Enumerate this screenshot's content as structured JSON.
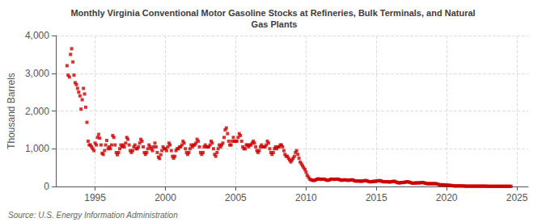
{
  "chart_data": {
    "type": "scatter",
    "title": "Monthly Virginia Conventional Motor Gasoline Stocks at Refineries, Bulk Terminals, and Natural\n Gas Plants",
    "ylabel": "Thousand Barrels",
    "source": "Source: U.S. Energy Information Administration",
    "color": "#CC0000",
    "marker": "square",
    "grid": true,
    "xlim": [
      1992.2,
      2025.8
    ],
    "xticks": [
      1995,
      2000,
      2005,
      2010,
      2015,
      2020,
      2025
    ],
    "ylim": [
      0,
      4000
    ],
    "yticks": [
      0,
      {
        "value": 1000,
        "label": "1,000"
      },
      {
        "value": 2000,
        "label": "2,000"
      },
      {
        "value": 3000,
        "label": "3,000"
      },
      {
        "value": 4000,
        "label": "4,000"
      }
    ],
    "x": [
      1993.0,
      1993.08,
      1993.17,
      1993.25,
      1993.33,
      1993.42,
      1993.5,
      1993.58,
      1993.67,
      1993.75,
      1993.83,
      1993.92,
      1994.0,
      1994.08,
      1994.17,
      1994.25,
      1994.33,
      1994.42,
      1994.5,
      1994.58,
      1994.67,
      1994.75,
      1994.83,
      1994.92,
      1995.0,
      1995.08,
      1995.17,
      1995.25,
      1995.33,
      1995.42,
      1995.5,
      1995.58,
      1995.67,
      1995.75,
      1995.83,
      1995.92,
      1996.0,
      1996.08,
      1996.17,
      1996.25,
      1996.33,
      1996.42,
      1996.5,
      1996.58,
      1996.67,
      1996.75,
      1996.83,
      1996.92,
      1997.0,
      1997.08,
      1997.17,
      1997.25,
      1997.33,
      1997.42,
      1997.5,
      1997.58,
      1997.67,
      1997.75,
      1997.83,
      1997.92,
      1998.0,
      1998.08,
      1998.17,
      1998.25,
      1998.33,
      1998.42,
      1998.5,
      1998.58,
      1998.67,
      1998.75,
      1998.83,
      1998.92,
      1999.0,
      1999.08,
      1999.17,
      1999.25,
      1999.33,
      1999.42,
      1999.5,
      1999.58,
      1999.67,
      1999.75,
      1999.83,
      1999.92,
      2000.0,
      2000.08,
      2000.17,
      2000.25,
      2000.33,
      2000.42,
      2000.5,
      2000.58,
      2000.67,
      2000.75,
      2000.83,
      2000.92,
      2001.0,
      2001.08,
      2001.17,
      2001.25,
      2001.33,
      2001.42,
      2001.5,
      2001.58,
      2001.67,
      2001.75,
      2001.83,
      2001.92,
      2002.0,
      2002.08,
      2002.17,
      2002.25,
      2002.33,
      2002.42,
      2002.5,
      2002.58,
      2002.67,
      2002.75,
      2002.83,
      2002.92,
      2003.0,
      2003.08,
      2003.17,
      2003.25,
      2003.33,
      2003.42,
      2003.5,
      2003.58,
      2003.67,
      2003.75,
      2003.83,
      2003.92,
      2004.0,
      2004.08,
      2004.17,
      2004.25,
      2004.33,
      2004.42,
      2004.5,
      2004.58,
      2004.67,
      2004.75,
      2004.83,
      2004.92,
      2005.0,
      2005.08,
      2005.17,
      2005.25,
      2005.33,
      2005.42,
      2005.5,
      2005.58,
      2005.67,
      2005.75,
      2005.83,
      2005.92,
      2006.0,
      2006.08,
      2006.17,
      2006.25,
      2006.33,
      2006.42,
      2006.5,
      2006.58,
      2006.67,
      2006.75,
      2006.83,
      2006.92,
      2007.0,
      2007.08,
      2007.17,
      2007.25,
      2007.33,
      2007.42,
      2007.5,
      2007.58,
      2007.67,
      2007.75,
      2007.83,
      2007.92,
      2008.0,
      2008.08,
      2008.17,
      2008.25,
      2008.33,
      2008.42,
      2008.5,
      2008.58,
      2008.67,
      2008.75,
      2008.83,
      2008.92,
      2009.0,
      2009.08,
      2009.17,
      2009.25,
      2009.33,
      2009.42,
      2009.5,
      2009.58,
      2009.67,
      2009.75,
      2009.83,
      2009.92,
      2010.0,
      2010.08,
      2010.17,
      2010.25,
      2010.33,
      2010.42,
      2010.5,
      2010.58,
      2010.67,
      2010.75,
      2010.83,
      2010.92,
      2011.0,
      2011.08,
      2011.17,
      2011.25,
      2011.33,
      2011.42,
      2011.5,
      2011.58,
      2011.67,
      2011.75,
      2011.83,
      2011.92,
      2012.0,
      2012.08,
      2012.17,
      2012.25,
      2012.33,
      2012.42,
      2012.5,
      2012.58,
      2012.67,
      2012.75,
      2012.83,
      2012.92,
      2013.0,
      2013.08,
      2013.17,
      2013.25,
      2013.33,
      2013.42,
      2013.5,
      2013.58,
      2013.67,
      2013.75,
      2013.83,
      2013.92,
      2014.0,
      2014.08,
      2014.17,
      2014.25,
      2014.33,
      2014.42,
      2014.5,
      2014.58,
      2014.67,
      2014.75,
      2014.83,
      2014.92,
      2015.0,
      2015.08,
      2015.17,
      2015.25,
      2015.33,
      2015.42,
      2015.5,
      2015.58,
      2015.67,
      2015.75,
      2015.83,
      2015.92,
      2016.0,
      2016.08,
      2016.17,
      2016.25,
      2016.33,
      2016.42,
      2016.5,
      2016.58,
      2016.67,
      2016.75,
      2016.83,
      2016.92,
      2017.0,
      2017.08,
      2017.17,
      2017.25,
      2017.33,
      2017.42,
      2017.5,
      2017.58,
      2017.67,
      2017.75,
      2017.83,
      2017.92,
      2018.0,
      2018.08,
      2018.17,
      2018.25,
      2018.33,
      2018.42,
      2018.5,
      2018.58,
      2018.67,
      2018.75,
      2018.83,
      2018.92,
      2019.0,
      2019.08,
      2019.17,
      2019.25,
      2019.33,
      2019.42,
      2019.5,
      2019.58,
      2019.67,
      2019.75,
      2019.83,
      2019.92,
      2020.0,
      2020.08,
      2020.17,
      2020.25,
      2020.33,
      2020.42,
      2020.5,
      2020.58,
      2020.67,
      2020.75,
      2020.83,
      2020.92,
      2021.0,
      2021.08,
      2021.17,
      2021.25,
      2021.33,
      2021.42,
      2021.5,
      2021.58,
      2021.67,
      2021.75,
      2021.83,
      2021.92,
      2022.0,
      2022.08,
      2022.17,
      2022.25,
      2022.33,
      2022.42,
      2022.5,
      2022.58,
      2022.67,
      2022.75,
      2022.83,
      2022.92,
      2023.0,
      2023.08,
      2023.17,
      2023.25,
      2023.33,
      2023.42,
      2023.5,
      2023.58,
      2023.67,
      2023.75,
      2023.83,
      2023.92,
      2024.0,
      2024.08,
      2024.17,
      2024.25,
      2024.33,
      2024.42,
      2024.5,
      2024.58
    ],
    "values": [
      3200,
      2950,
      2900,
      3500,
      3650,
      3300,
      2950,
      2750,
      2700,
      2600,
      2500,
      2400,
      2050,
      2300,
      2600,
      2450,
      2100,
      1700,
      1200,
      1100,
      1100,
      1050,
      1000,
      950,
      1150,
      1100,
      1300,
      1380,
      1280,
      1100,
      880,
      850,
      950,
      1100,
      1220,
      1000,
      1050,
      1000,
      1100,
      1350,
      1300,
      1100,
      900,
      840,
      900,
      1000,
      1100,
      1050,
      1100,
      1050,
      1150,
      1300,
      1250,
      1100,
      950,
      900,
      950,
      1050,
      1100,
      1000,
      1000,
      1050,
      1150,
      1250,
      1200,
      1050,
      900,
      850,
      900,
      1000,
      1100,
      1050,
      1000,
      950,
      1050,
      1150,
      1050,
      900,
      780,
      740,
      840,
      950,
      1050,
      1000,
      1000,
      950,
      1050,
      1150,
      1100,
      950,
      800,
      750,
      800,
      950,
      1000,
      1000,
      1050,
      1050,
      1100,
      1200,
      1150,
      1000,
      900,
      850,
      900,
      1000,
      1100,
      1050,
      1100,
      1100,
      1150,
      1250,
      1200,
      1050,
      900,
      850,
      900,
      1050,
      1100,
      1050,
      1050,
      1050,
      1100,
      1200,
      1150,
      1000,
      850,
      800,
      900,
      1000,
      1100,
      1050,
      1100,
      1150,
      1300,
      1500,
      1550,
      1400,
      1200,
      1100,
      1100,
      1200,
      1300,
      1200,
      1200,
      1200,
      1300,
      1400,
      1350,
      1200,
      1050,
      1000,
      1000,
      1100,
      1100,
      1050,
      1100,
      1100,
      1150,
      1200,
      1150,
      1050,
      950,
      900,
      950,
      1050,
      1100,
      1050,
      1050,
      1050,
      1100,
      1200,
      1150,
      1000,
      900,
      850,
      900,
      1000,
      1050,
      1000,
      1050,
      1050,
      1100,
      1100,
      1050,
      950,
      850,
      800,
      800,
      750,
      700,
      650,
      700,
      750,
      800,
      900,
      950,
      850,
      750,
      650,
      600,
      550,
      500,
      450,
      380,
      300,
      250,
      200,
      180,
      170,
      160,
      160,
      170,
      190,
      200,
      200,
      190,
      190,
      195,
      195,
      190,
      175,
      165,
      165,
      175,
      195,
      195,
      190,
      190,
      190,
      195,
      195,
      190,
      175,
      165,
      165,
      175,
      175,
      175,
      165,
      165,
      165,
      175,
      175,
      175,
      155,
      145,
      145,
      145,
      145,
      145,
      135,
      145,
      145,
      155,
      155,
      155,
      135,
      125,
      125,
      125,
      135,
      135,
      135,
      145,
      145,
      155,
      155,
      145,
      135,
      125,
      125,
      125,
      125,
      125,
      115,
      125,
      125,
      135,
      135,
      135,
      115,
      105,
      95,
      95,
      105,
      105,
      105,
      115,
      115,
      125,
      125,
      115,
      105,
      95,
      85,
      85,
      95,
      95,
      95,
      95,
      95,
      105,
      105,
      105,
      95,
      85,
      75,
      75,
      75,
      75,
      75,
      75,
      75,
      75,
      75,
      65,
      55,
      45,
      45,
      45,
      45,
      45,
      35,
      35,
      35,
      35,
      25,
      25,
      25,
      15,
      15,
      15,
      15,
      15,
      15,
      15,
      15,
      15,
      10,
      10,
      8,
      8,
      8,
      8,
      8,
      8,
      8,
      8,
      8,
      8,
      8,
      8,
      8,
      8,
      8,
      8,
      8,
      8,
      5,
      5,
      5,
      5,
      5,
      5,
      5,
      5,
      5,
      5,
      5,
      5,
      5,
      5,
      5,
      5,
      5,
      5,
      5,
      5,
      5
    ]
  }
}
